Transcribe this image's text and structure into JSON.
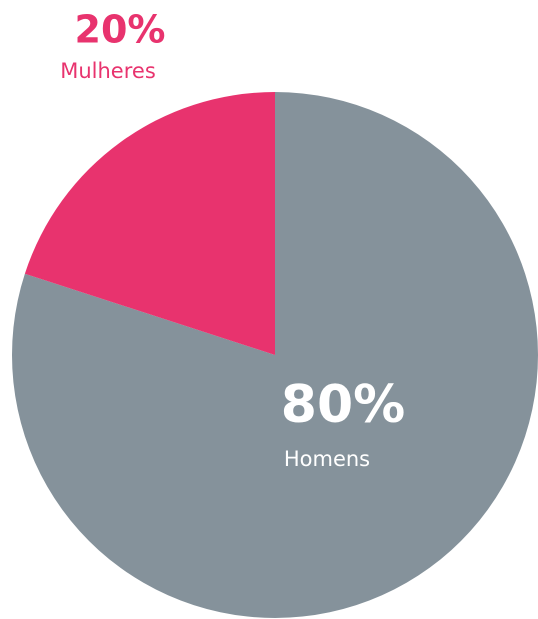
{
  "chart_data": {
    "type": "pie",
    "categories": [
      "Homens",
      "Mulheres"
    ],
    "values": [
      80,
      20
    ],
    "value_labels": [
      "80%",
      "20%"
    ],
    "colors": [
      "#85929b",
      "#e8336e"
    ]
  }
}
